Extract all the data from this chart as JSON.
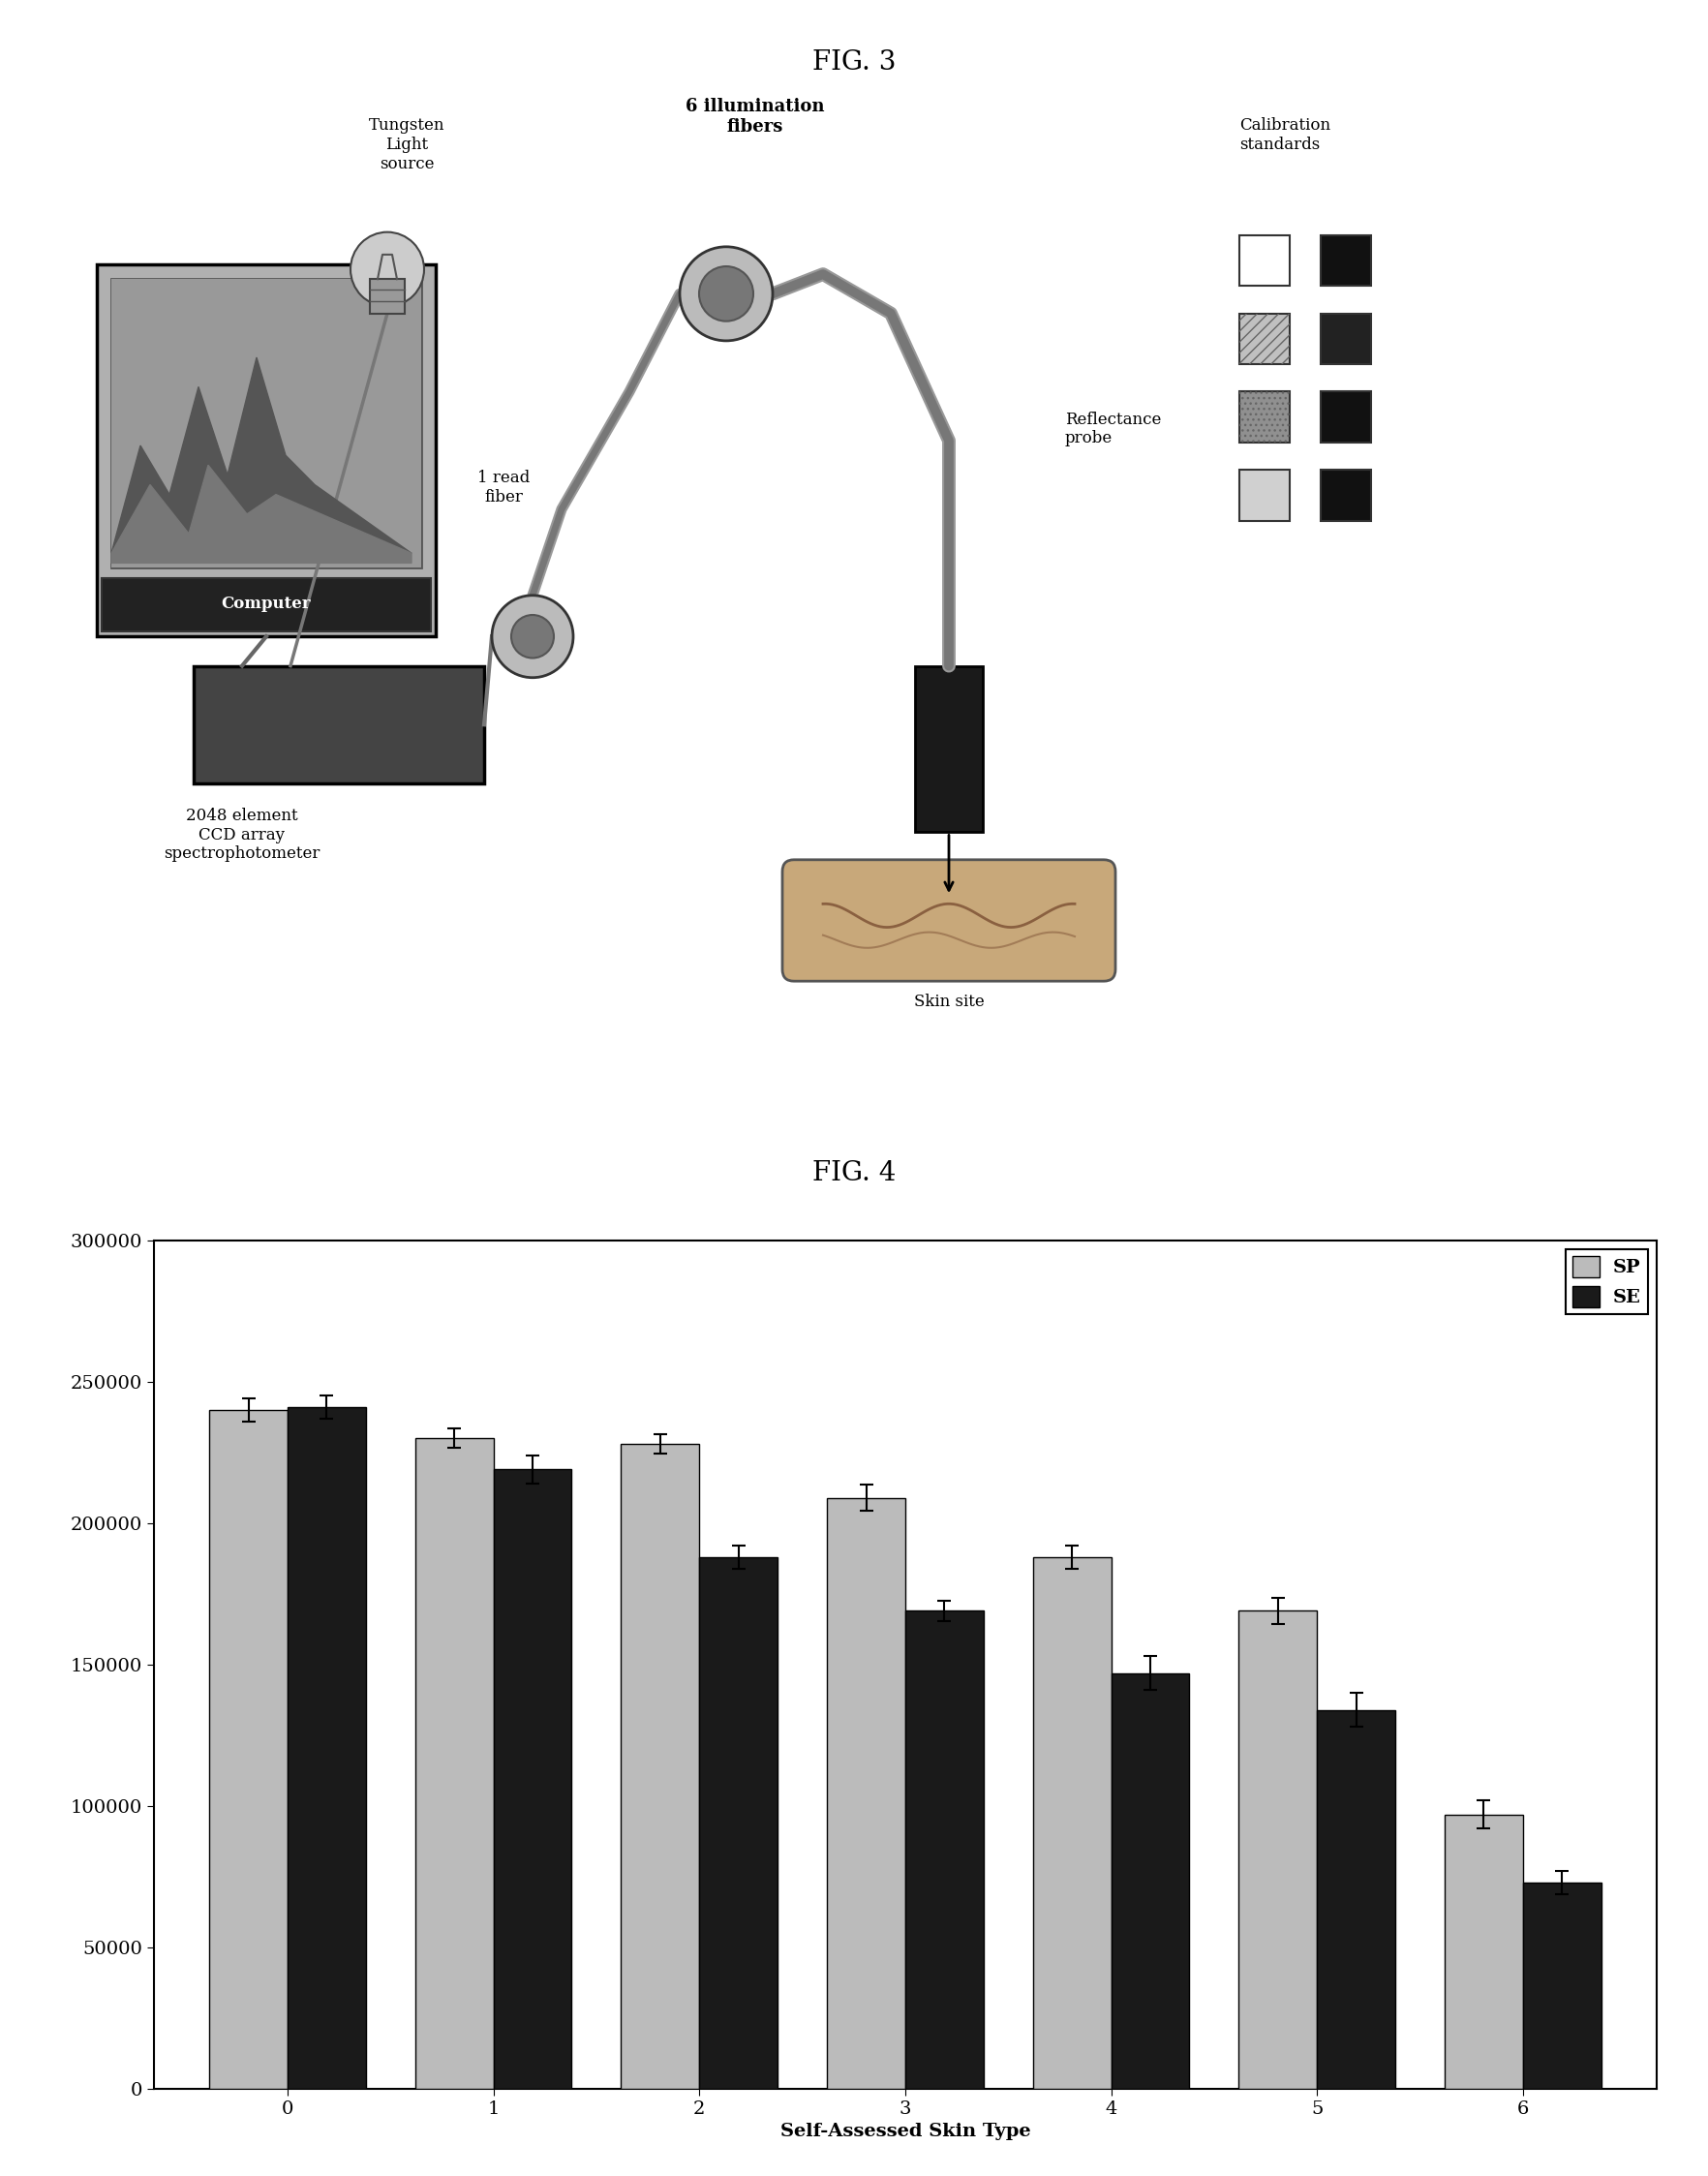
{
  "fig3_title": "FIG. 3",
  "fig4_title": "FIG. 4",
  "bar_categories": [
    "0",
    "1",
    "2",
    "3",
    "4",
    "5",
    "6"
  ],
  "sp_values": [
    240000,
    230000,
    228000,
    209000,
    188000,
    169000,
    97000
  ],
  "se_values": [
    241000,
    219000,
    188000,
    169000,
    147000,
    134000,
    73000
  ],
  "sp_errors": [
    4000,
    3500,
    3500,
    4500,
    4000,
    4500,
    5000
  ],
  "se_errors": [
    4000,
    5000,
    4000,
    3500,
    6000,
    6000,
    4000
  ],
  "sp_color": "#1a1a1a",
  "se_color": "#888888",
  "xlabel": "Self-Assessed Skin Type",
  "ylim": [
    0,
    300000
  ],
  "yticks": [
    0,
    50000,
    100000,
    150000,
    200000,
    250000,
    300000
  ],
  "legend_sp": "SP",
  "legend_se": "SE",
  "background_color": "#ffffff",
  "tungsten_label": "Tungsten\nLight\nsource",
  "fiber6_label": "6 illumination\nfibers",
  "read1_label": "1 read\nfiber",
  "reflectance_label": "Reflectance\nprobe",
  "ccd_label": "2048 element\nCCD array\nspectrophotometer",
  "skin_label": "Skin site",
  "computer_label": "Computer",
  "cal_label": "Calibration\nstandards"
}
